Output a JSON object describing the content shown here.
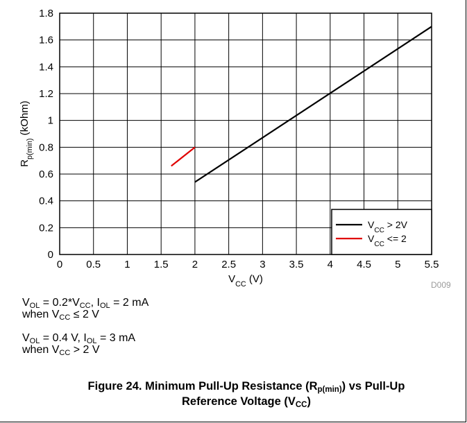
{
  "chart_data": {
    "type": "line",
    "xlabel_main": "V",
    "xlabel_sub": "CC",
    "xlabel_unit": " (V)",
    "ylabel_main": "R",
    "ylabel_sub": "p(min)",
    "ylabel_unit": " (kOhm)",
    "xlim": [
      0,
      5.5
    ],
    "ylim": [
      0,
      1.8
    ],
    "x_ticks": [
      "0",
      "0.5",
      "1",
      "1.5",
      "2",
      "2.5",
      "3",
      "3.5",
      "4",
      "4.5",
      "5",
      "5.5"
    ],
    "y_ticks": [
      "0",
      "0.2",
      "0.4",
      "0.6",
      "0.8",
      "1",
      "1.2",
      "1.4",
      "1.6",
      "1.8"
    ],
    "grid": true,
    "legend_position": "bottom-right",
    "series": [
      {
        "name_main": "V",
        "name_sub": "CC",
        "name_rest": " > 2V",
        "color": "#000000",
        "points": [
          [
            2,
            0.54
          ],
          [
            5.5,
            1.7
          ]
        ]
      },
      {
        "name_main": "V",
        "name_sub": "CC",
        "name_rest": " <= 2",
        "color": "#e00000",
        "points": [
          [
            1.65,
            0.66
          ],
          [
            2,
            0.8
          ]
        ]
      }
    ]
  },
  "figure_code": "D009",
  "notes": [
    {
      "v_main": "V",
      "v_sub": "OL",
      "v_eq": " = 0.2*V",
      "v_sub2": "CC",
      "i_sep": ", I",
      "i_sub": "OL",
      "i_eq": " = 2 mA",
      "cond_pre": "when V",
      "cond_sub": "CC",
      "cond_post": " ≤ 2 V"
    },
    {
      "v_main": "V",
      "v_sub": "OL",
      "v_eq": " = 0.4 V",
      "v_sub2": "",
      "i_sep": ", I",
      "i_sub": "OL",
      "i_eq": " = 3 mA",
      "cond_pre": "when V",
      "cond_sub": "CC",
      "cond_post": " > 2 V"
    }
  ],
  "caption": {
    "part1": "Figure 24. Minimum Pull-Up Resistance (R",
    "sub1": "p(min)",
    "part2": ") vs Pull-Up",
    "part3": "Reference Voltage (V",
    "sub2": "CC",
    "part4": ")"
  }
}
